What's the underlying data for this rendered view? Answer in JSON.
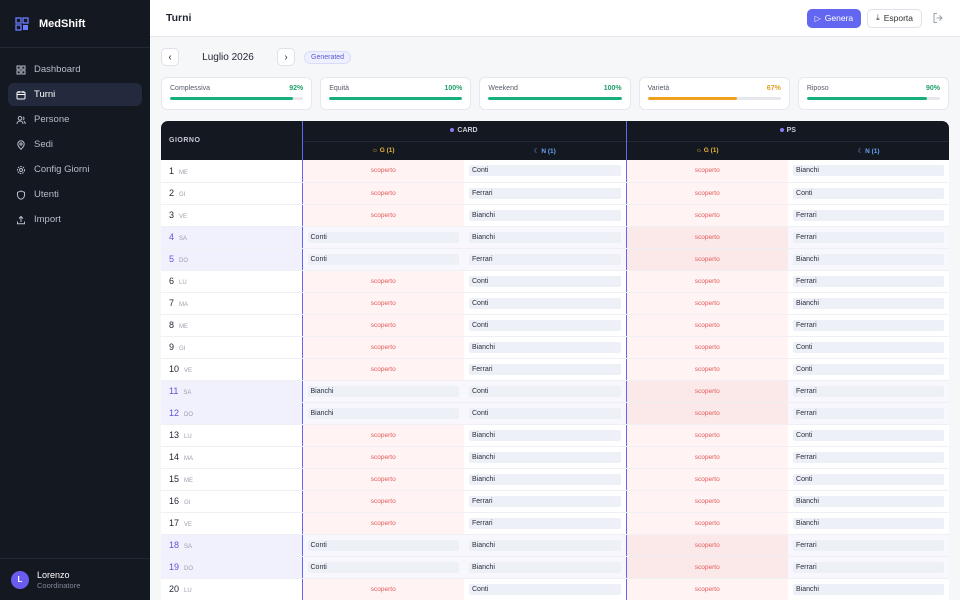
{
  "brand": {
    "name": "MedShift",
    "logo_icon": "grid-logo-icon"
  },
  "nav": [
    {
      "label": "Dashboard",
      "icon": "grid-icon",
      "active": false
    },
    {
      "label": "Turni",
      "icon": "calendar-icon",
      "active": true
    },
    {
      "label": "Persone",
      "icon": "users-icon",
      "active": false
    },
    {
      "label": "Sedi",
      "icon": "pin-icon",
      "active": false
    },
    {
      "label": "Config Giorni",
      "icon": "gear-icon",
      "active": false
    },
    {
      "label": "Utenti",
      "icon": "shield-icon",
      "active": false
    },
    {
      "label": "Import",
      "icon": "upload-icon",
      "active": false
    }
  ],
  "user": {
    "initial": "L",
    "name": "Lorenzo",
    "role": "Coordinatore"
  },
  "topbar": {
    "title": "Turni",
    "genera_label": "Genera",
    "esporta_label": "Esporta"
  },
  "month": {
    "label": "Luglio 2026",
    "status": "Generated"
  },
  "metrics": [
    {
      "label": "Complessiva",
      "value": "92%",
      "fraction": 0.92,
      "color": "#16b07a"
    },
    {
      "label": "Equità",
      "value": "100%",
      "fraction": 1.0,
      "color": "#16b07a"
    },
    {
      "label": "Weekend",
      "value": "100%",
      "fraction": 1.0,
      "color": "#16b07a"
    },
    {
      "label": "Varietà",
      "value": "67%",
      "fraction": 0.67,
      "color": "#f0a020"
    },
    {
      "label": "Riposo",
      "value": "90%",
      "fraction": 0.9,
      "color": "#16b07a"
    }
  ],
  "table": {
    "day_header": "GIORNO",
    "groups": [
      {
        "name": "CARD",
        "sub": [
          {
            "symbol": "☼",
            "label": "G (1)"
          },
          {
            "symbol": "☾",
            "label": "N (1)"
          }
        ]
      },
      {
        "name": "PS",
        "sub": [
          {
            "symbol": "☼",
            "label": "G (1)"
          },
          {
            "symbol": "☾",
            "label": "N (1)"
          }
        ]
      }
    ],
    "uncovered_label": "scoperto",
    "rows": [
      {
        "day": "1",
        "wd": "ME",
        "we": false,
        "cells": [
          "",
          "Conti",
          "",
          "Bianchi"
        ]
      },
      {
        "day": "2",
        "wd": "GI",
        "we": false,
        "cells": [
          "",
          "Ferrari",
          "",
          "Conti"
        ]
      },
      {
        "day": "3",
        "wd": "VE",
        "we": false,
        "cells": [
          "",
          "Bianchi",
          "",
          "Ferrari"
        ]
      },
      {
        "day": "4",
        "wd": "SA",
        "we": true,
        "cells": [
          "Conti",
          "Bianchi",
          "",
          "Ferrari"
        ]
      },
      {
        "day": "5",
        "wd": "DO",
        "we": true,
        "cells": [
          "Conti",
          "Ferrari",
          "",
          "Bianchi"
        ]
      },
      {
        "day": "6",
        "wd": "LU",
        "we": false,
        "cells": [
          "",
          "Conti",
          "",
          "Ferrari"
        ]
      },
      {
        "day": "7",
        "wd": "MA",
        "we": false,
        "cells": [
          "",
          "Conti",
          "",
          "Bianchi"
        ]
      },
      {
        "day": "8",
        "wd": "ME",
        "we": false,
        "cells": [
          "",
          "Conti",
          "",
          "Ferrari"
        ]
      },
      {
        "day": "9",
        "wd": "GI",
        "we": false,
        "cells": [
          "",
          "Bianchi",
          "",
          "Conti"
        ]
      },
      {
        "day": "10",
        "wd": "VE",
        "we": false,
        "cells": [
          "",
          "Ferrari",
          "",
          "Conti"
        ]
      },
      {
        "day": "11",
        "wd": "SA",
        "we": true,
        "cells": [
          "Bianchi",
          "Conti",
          "",
          "Ferrari"
        ]
      },
      {
        "day": "12",
        "wd": "DO",
        "we": true,
        "cells": [
          "Bianchi",
          "Conti",
          "",
          "Ferrari"
        ]
      },
      {
        "day": "13",
        "wd": "LU",
        "we": false,
        "cells": [
          "",
          "Bianchi",
          "",
          "Conti"
        ]
      },
      {
        "day": "14",
        "wd": "MA",
        "we": false,
        "cells": [
          "",
          "Bianchi",
          "",
          "Ferrari"
        ]
      },
      {
        "day": "15",
        "wd": "ME",
        "we": false,
        "cells": [
          "",
          "Bianchi",
          "",
          "Conti"
        ]
      },
      {
        "day": "16",
        "wd": "GI",
        "we": false,
        "cells": [
          "",
          "Ferrari",
          "",
          "Bianchi"
        ]
      },
      {
        "day": "17",
        "wd": "VE",
        "we": false,
        "cells": [
          "",
          "Ferrari",
          "",
          "Bianchi"
        ]
      },
      {
        "day": "18",
        "wd": "SA",
        "we": true,
        "cells": [
          "Conti",
          "Bianchi",
          "",
          "Ferrari"
        ]
      },
      {
        "day": "19",
        "wd": "DO",
        "we": true,
        "cells": [
          "Conti",
          "Bianchi",
          "",
          "Ferrari"
        ]
      },
      {
        "day": "20",
        "wd": "LU",
        "we": false,
        "cells": [
          "",
          "Conti",
          "",
          "Bianchi"
        ]
      }
    ]
  }
}
